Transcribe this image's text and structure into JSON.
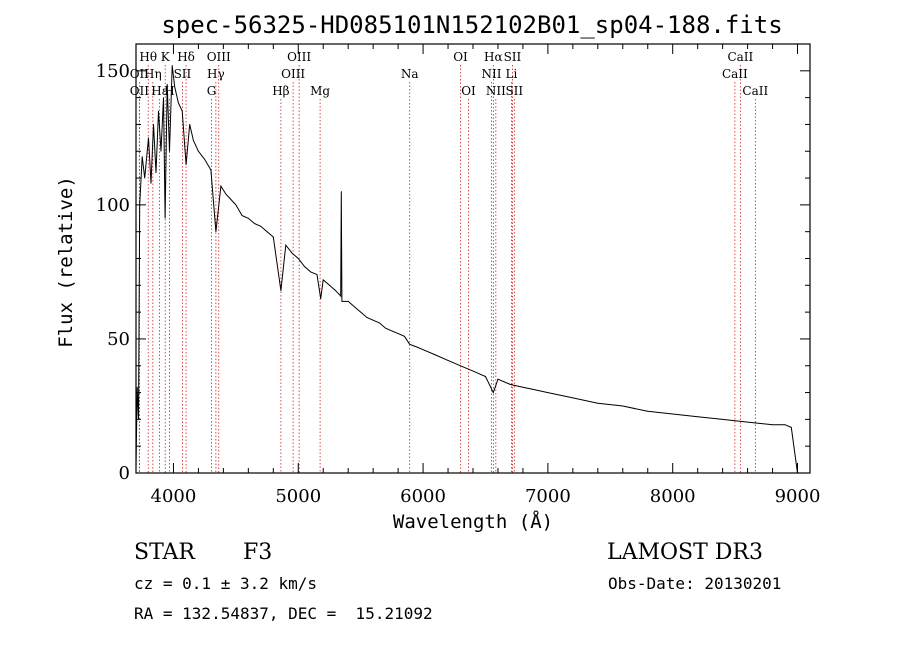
{
  "chart_data": {
    "type": "line",
    "title": "spec-56325-HD085101N152102B01_sp04-188.fits",
    "xlabel": "Wavelength (Å)",
    "ylabel": "Flux (relative)",
    "xlim": [
      3700,
      9100
    ],
    "ylim": [
      0,
      160
    ],
    "xticks": [
      4000,
      5000,
      6000,
      7000,
      8000,
      9000
    ],
    "yticks": [
      0,
      50,
      100,
      150
    ],
    "series": [
      {
        "name": "spectrum",
        "x": [
          3700,
          3710,
          3720,
          3730,
          3750,
          3770,
          3800,
          3820,
          3840,
          3860,
          3880,
          3900,
          3920,
          3933,
          3950,
          3968,
          3990,
          4010,
          4040,
          4070,
          4101,
          4130,
          4160,
          4200,
          4250,
          4300,
          4340,
          4380,
          4420,
          4460,
          4500,
          4550,
          4600,
          4650,
          4700,
          4750,
          4800,
          4861,
          4900,
          4950,
          5000,
          5050,
          5100,
          5150,
          5180,
          5200,
          5250,
          5300,
          5340,
          5345,
          5350,
          5400,
          5450,
          5500,
          5550,
          5600,
          5650,
          5700,
          5750,
          5800,
          5850,
          5893,
          5950,
          6000,
          6100,
          6200,
          6300,
          6400,
          6500,
          6563,
          6600,
          6700,
          6800,
          6900,
          7000,
          7200,
          7400,
          7600,
          7800,
          8000,
          8200,
          8400,
          8600,
          8800,
          8900,
          8950,
          9000
        ],
        "y": [
          2,
          32,
          20,
          100,
          118,
          110,
          125,
          108,
          130,
          112,
          135,
          120,
          140,
          95,
          145,
          120,
          152,
          144,
          138,
          135,
          115,
          130,
          124,
          120,
          117,
          113,
          90,
          107,
          104,
          102,
          100,
          96,
          95,
          93,
          92,
          90,
          88,
          68,
          85,
          82,
          80,
          77,
          75,
          74,
          65,
          72,
          70,
          68,
          66,
          105,
          64,
          64,
          62,
          60,
          58,
          57,
          56,
          54,
          53,
          52,
          51,
          48,
          47,
          46,
          44,
          42,
          40,
          38,
          36,
          30,
          35,
          33,
          32,
          31,
          30,
          28,
          26,
          25,
          23,
          22,
          21,
          20,
          19,
          18,
          18,
          17,
          0
        ]
      }
    ],
    "spectral_lines": [
      {
        "label": "Hθ",
        "wavelength": 3798,
        "row": 1
      },
      {
        "label": "OII",
        "wavelength": 3727,
        "row": 2
      },
      {
        "label": "Hη",
        "wavelength": 3835,
        "row": 2
      },
      {
        "label": "OII",
        "wavelength": 3727,
        "row": 3
      },
      {
        "label": "Hε",
        "wavelength": 3889,
        "row": 3
      },
      {
        "label": "K",
        "wavelength": 3934,
        "row": 1
      },
      {
        "label": "H",
        "wavelength": 3968,
        "row": 3
      },
      {
        "label": "Hδ",
        "wavelength": 4101,
        "row": 1
      },
      {
        "label": "SII",
        "wavelength": 4072,
        "row": 2
      },
      {
        "label": "OIII",
        "wavelength": 4363,
        "row": 1
      },
      {
        "label": "Hγ",
        "wavelength": 4340,
        "row": 2
      },
      {
        "label": "G",
        "wavelength": 4305,
        "row": 3
      },
      {
        "label": "Hβ",
        "wavelength": 4861,
        "row": 3
      },
      {
        "label": "OIII",
        "wavelength": 5007,
        "row": 1
      },
      {
        "label": "OIII",
        "wavelength": 4959,
        "row": 2
      },
      {
        "label": "Mg",
        "wavelength": 5175,
        "row": 3
      },
      {
        "label": "Na",
        "wavelength": 5893,
        "row": 2
      },
      {
        "label": "OI",
        "wavelength": 6300,
        "row": 1
      },
      {
        "label": "OI",
        "wavelength": 6364,
        "row": 3
      },
      {
        "label": "Hα",
        "wavelength": 6563,
        "row": 1
      },
      {
        "label": "SII",
        "wavelength": 6716,
        "row": 1
      },
      {
        "label": "NII",
        "wavelength": 6548,
        "row": 2
      },
      {
        "label": "Li",
        "wavelength": 6708,
        "row": 2
      },
      {
        "label": "NII",
        "wavelength": 6583,
        "row": 3
      },
      {
        "label": "SII",
        "wavelength": 6731,
        "row": 3
      },
      {
        "label": "CaII",
        "wavelength": 8542,
        "row": 1
      },
      {
        "label": "CaII",
        "wavelength": 8498,
        "row": 2
      },
      {
        "label": "CaII",
        "wavelength": 8662,
        "row": 3
      }
    ],
    "colors": {
      "spectrum": "#000000",
      "lines": "#cc2222",
      "axes": "#000000"
    }
  },
  "info": {
    "object_class": "STAR",
    "subclass": "F3",
    "survey": "LAMOST DR3",
    "cz": "cz = 0.1 ± 3.2 km/s",
    "obs_date": "Obs-Date: 20130201",
    "coords": "RA = 132.54837, DEC =  15.21092"
  }
}
